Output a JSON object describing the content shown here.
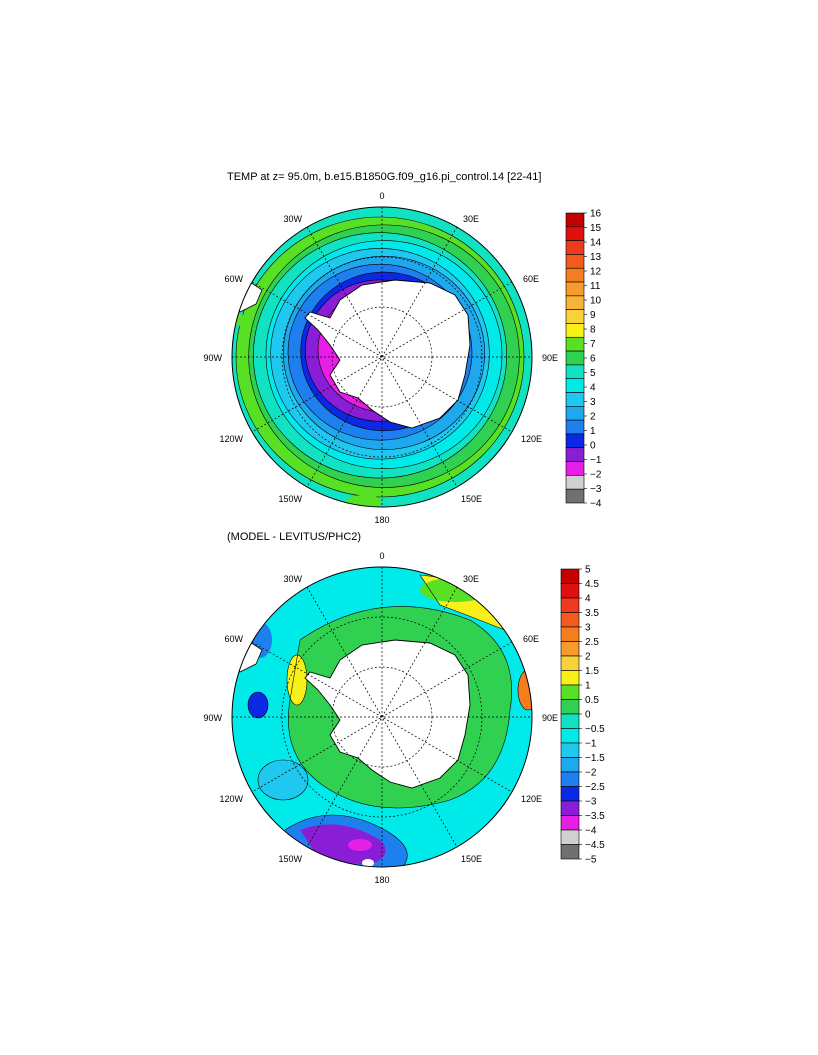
{
  "panel1": {
    "title": "TEMP at z=  95.0m, b.e15.B1850G.f09_g16.pi_control.14 [22-41]",
    "lon_labels": [
      "0",
      "30E",
      "60E",
      "90E",
      "120E",
      "150E",
      "180",
      "150W",
      "120W",
      "90W",
      "60W",
      "30W"
    ],
    "colorbar": {
      "labels": [
        "16",
        "15",
        "14",
        "13",
        "12",
        "11",
        "10",
        "9",
        "8",
        "7",
        "6",
        "5",
        "4",
        "3",
        "2",
        "1",
        "0",
        "−1",
        "−2",
        "−3",
        "−4"
      ],
      "colors": [
        "#c40000",
        "#e01010",
        "#f03a1e",
        "#f35a1e",
        "#f57d1e",
        "#f89a2e",
        "#f8b43a",
        "#f8d23a",
        "#f8f018",
        "#58e024",
        "#30d050",
        "#10e2c2",
        "#00eaea",
        "#1ec8ee",
        "#1ea8ee",
        "#1e80ee",
        "#0a28e6",
        "#8a1ed6",
        "#e61ee6",
        "#d0d0d0",
        "#707070"
      ]
    },
    "rings": [
      "#58e024",
      "#30d050",
      "#10e2c2",
      "#00eaea",
      "#1ec8ee",
      "#1ea8ee",
      "#1e80ee",
      "#0a28e6",
      "#8a1ed6",
      "#e61ee6"
    ]
  },
  "panel2": {
    "title": "(MODEL - LEVITUS/PHC2)",
    "lon_labels": [
      "0",
      "30E",
      "60E",
      "90E",
      "120E",
      "150E",
      "180",
      "150W",
      "120W",
      "90W",
      "60W",
      "30W"
    ],
    "colorbar": {
      "labels": [
        "5",
        "4.5",
        "4",
        "3.5",
        "3",
        "2.5",
        "2",
        "1.5",
        "1",
        "0.5",
        "0",
        "−0.5",
        "−1",
        "−1.5",
        "−2",
        "−2.5",
        "−3",
        "−3.5",
        "−4",
        "−4.5",
        "−5"
      ],
      "colors": [
        "#c40000",
        "#e01010",
        "#f03a1e",
        "#f35a1e",
        "#f57d1e",
        "#f89a2e",
        "#f8d23a",
        "#f8f018",
        "#58e024",
        "#30d050",
        "#10e2c2",
        "#00eaea",
        "#1ec8ee",
        "#1ea8ee",
        "#1e80ee",
        "#0a28e6",
        "#8a1ed6",
        "#e61ee6",
        "#d0d0d0",
        "#707070"
      ]
    }
  }
}
